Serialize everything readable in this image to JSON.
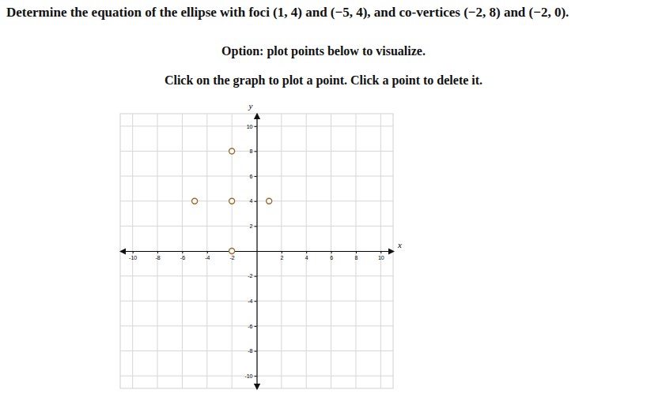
{
  "question": "Determine the equation of the ellipse with foci (1, 4) and (−5, 4), and co-vertices (−2, 8) and (−2, 0).",
  "option": "Option: plot points below to visualize.",
  "instruction": "Click on the graph to plot a point. Click a point to delete it.",
  "chart_data": {
    "type": "scatter",
    "x": [
      -2,
      -5,
      -2,
      1,
      -2
    ],
    "values": [
      8,
      4,
      4,
      4,
      0
    ],
    "x_label": "x",
    "y_label": "y",
    "xlim": [
      -11,
      11
    ],
    "ylim": [
      -11,
      11
    ],
    "xticks": [
      -10,
      -8,
      -6,
      -4,
      -2,
      2,
      4,
      6,
      8,
      10
    ],
    "yticks": [
      -10,
      -8,
      -6,
      -4,
      -2,
      2,
      4,
      6,
      8,
      10
    ],
    "grid": true,
    "marker": "circle",
    "color": "#9a6b2f"
  }
}
